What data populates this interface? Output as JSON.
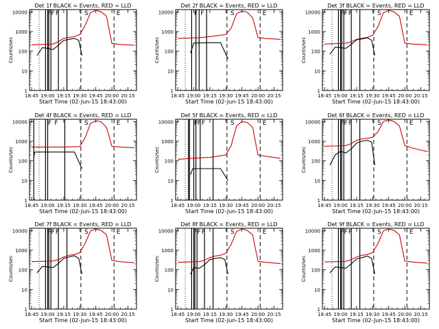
{
  "chart_data": [
    {
      "type": "line",
      "title": "Det 1f BLACK = Events, RED = LLD",
      "xlabel": "Start Time (02-Jun-15 18:43:00)",
      "ylabel": "Counts/sec",
      "xticks": [
        "18:45",
        "19:00",
        "19:15",
        "19:30",
        "19:45",
        "20:00",
        "20:15"
      ],
      "xlim_min": [
        -2,
        98
      ],
      "yscale": "log",
      "ylim": [
        1,
        13000
      ],
      "yticks": [
        "1",
        "10",
        "100",
        "1000",
        "10000"
      ],
      "marker_labels": [
        "F",
        "F",
        "F",
        "S",
        "E"
      ],
      "series": [
        {
          "color": "#cc0000",
          "x": [
            0,
            10,
            20,
            25,
            30,
            35,
            40,
            45,
            50,
            55,
            60,
            65,
            70,
            75,
            82,
            90,
            96
          ],
          "y": [
            210,
            220,
            230,
            300,
            450,
            500,
            550,
            700,
            2000,
            9000,
            12000,
            10000,
            6000,
            250,
            220,
            210,
            200
          ]
        },
        {
          "color": "#000000",
          "x": [
            5,
            10,
            15,
            20,
            25,
            30,
            35,
            40,
            44,
            47
          ],
          "y": [
            60,
            150,
            140,
            120,
            200,
            350,
            400,
            450,
            350,
            60
          ]
        }
      ]
    },
    {
      "type": "line",
      "title": "Det 2f BLACK = Events, RED = LLD",
      "xlabel": "Start Time (02-Jun-15 18:43:00)",
      "ylabel": "Counts/sec",
      "xticks": [
        "18:45",
        "19:00",
        "19:15",
        "19:30",
        "19:45",
        "20:00",
        "20:15"
      ],
      "xlim_min": [
        -2,
        98
      ],
      "yscale": "log",
      "ylim": [
        1,
        13000
      ],
      "yticks": [
        "1",
        "10",
        "100",
        "1000",
        "10000"
      ],
      "marker_labels": [
        "F",
        "F",
        "S",
        "E"
      ],
      "series": [
        {
          "color": "#cc0000",
          "x": [
            0,
            10,
            20,
            30,
            40,
            45,
            50,
            55,
            60,
            65,
            70,
            75,
            82,
            90,
            96
          ],
          "y": [
            450,
            460,
            480,
            550,
            650,
            700,
            1500,
            8000,
            11000,
            9500,
            5000,
            500,
            440,
            420,
            400
          ]
        },
        {
          "color": "#000000",
          "x": [
            12,
            15,
            20,
            30,
            40,
            47
          ],
          "y": [
            80,
            260,
            260,
            270,
            270,
            40
          ]
        }
      ]
    },
    {
      "type": "line",
      "title": "Det 3f BLACK = Events, RED = LLD",
      "xlabel": "Start Time (02-Jun-15 18:43:00)",
      "ylabel": "Counts/sec",
      "xticks": [
        "18:45",
        "19:00",
        "19:15",
        "19:30",
        "19:45",
        "20:00",
        "20:15"
      ],
      "xlim_min": [
        -2,
        98
      ],
      "yscale": "log",
      "ylim": [
        1,
        13000
      ],
      "yticks": [
        "1",
        "10",
        "100",
        "1000",
        "10000"
      ],
      "marker_labels": [
        "F",
        "F",
        "F",
        "S",
        "E"
      ],
      "series": [
        {
          "color": "#cc0000",
          "x": [
            0,
            10,
            20,
            25,
            30,
            35,
            40,
            45,
            50,
            55,
            60,
            65,
            70,
            75,
            82,
            90,
            96
          ],
          "y": [
            230,
            240,
            250,
            300,
            400,
            450,
            500,
            650,
            1800,
            9000,
            12000,
            10000,
            6000,
            260,
            230,
            220,
            210
          ]
        },
        {
          "color": "#000000",
          "x": [
            5,
            10,
            15,
            20,
            25,
            30,
            35,
            40,
            44,
            47
          ],
          "y": [
            70,
            160,
            150,
            140,
            220,
            380,
            420,
            480,
            360,
            60
          ]
        }
      ]
    },
    {
      "type": "line",
      "title": "Det 4f BLACK = Events, RED = LLD",
      "xlabel": "Start Time (02-Jun-15 18:43:00)",
      "ylabel": "Counts/sec",
      "xticks": [
        "18:45",
        "19:00",
        "19:15",
        "19:30",
        "19:45",
        "20:00",
        "20:15"
      ],
      "xlim_min": [
        -2,
        98
      ],
      "yscale": "log",
      "ylim": [
        1,
        13000
      ],
      "yticks": [
        "1",
        "10",
        "100",
        "1000",
        "10000"
      ],
      "marker_labels": [
        "F",
        "F",
        "S",
        "E"
      ],
      "series": [
        {
          "color": "#cc0000",
          "x": [
            0,
            10,
            20,
            30,
            40,
            45,
            50,
            55,
            60,
            65,
            70,
            75,
            82,
            90,
            96
          ],
          "y": [
            500,
            500,
            500,
            500,
            520,
            530,
            1500,
            8000,
            11000,
            9500,
            5000,
            550,
            500,
            480,
            460
          ]
        },
        {
          "color": "#000000",
          "x": [
            2,
            3,
            10,
            20,
            30,
            40,
            47
          ],
          "y": [
            150,
            280,
            280,
            280,
            280,
            280,
            40
          ]
        }
      ]
    },
    {
      "type": "line",
      "title": "Det 5f BLACK = Events, RED = LLD",
      "xlabel": "Start Time (02-Jun-15 18:43:00)",
      "ylabel": "Counts/sec",
      "xticks": [
        "18:45",
        "19:00",
        "19:15",
        "19:30",
        "19:45",
        "20:00",
        "20:15"
      ],
      "xlim_min": [
        -2,
        98
      ],
      "yscale": "log",
      "ylim": [
        1,
        13000
      ],
      "yticks": [
        "1",
        "10",
        "100",
        "1000",
        "10000"
      ],
      "marker_labels": [
        "F",
        "F",
        "F",
        "S",
        "E"
      ],
      "series": [
        {
          "color": "#cc0000",
          "x": [
            0,
            10,
            20,
            30,
            40,
            45,
            50,
            55,
            60,
            65,
            70,
            75,
            82,
            90,
            96
          ],
          "y": [
            120,
            130,
            140,
            150,
            180,
            200,
            600,
            6000,
            10000,
            9000,
            5000,
            200,
            170,
            150,
            130
          ]
        },
        {
          "color": "#000000",
          "x": [
            12,
            14,
            20,
            30,
            40,
            47
          ],
          "y": [
            20,
            40,
            40,
            40,
            40,
            10
          ]
        }
      ]
    },
    {
      "type": "line",
      "title": "Det 6f BLACK = Events, RED = LLD",
      "xlabel": "Start Time (02-Jun-15 18:43:00)",
      "ylabel": "Counts/sec",
      "xticks": [
        "18:45",
        "19:00",
        "19:15",
        "19:30",
        "19:45",
        "20:00",
        "20:15"
      ],
      "xlim_min": [
        -2,
        98
      ],
      "yscale": "log",
      "ylim": [
        1,
        13000
      ],
      "yticks": [
        "1",
        "10",
        "100",
        "1000",
        "10000"
      ],
      "marker_labels": [
        "F",
        "F",
        "F",
        "S",
        "E"
      ],
      "series": [
        {
          "color": "#cc0000",
          "x": [
            0,
            10,
            20,
            25,
            30,
            35,
            40,
            45,
            50,
            55,
            60,
            65,
            70,
            75,
            82,
            90,
            96
          ],
          "y": [
            550,
            570,
            600,
            750,
            1100,
            1300,
            1400,
            1600,
            3000,
            10000,
            12000,
            10000,
            6000,
            600,
            450,
            350,
            300
          ]
        },
        {
          "color": "#000000",
          "x": [
            5,
            10,
            15,
            20,
            25,
            30,
            35,
            40,
            44,
            47
          ],
          "y": [
            60,
            200,
            300,
            250,
            400,
            800,
            1000,
            1100,
            900,
            60
          ]
        }
      ]
    },
    {
      "type": "line",
      "title": "Det 7f BLACK = Events, RED = LLD",
      "xlabel": "Start Time (02-Jun-15 18:43:00)",
      "ylabel": "Counts/sec",
      "xticks": [
        "18:45",
        "19:00",
        "19:15",
        "19:30",
        "19:45",
        "20:00",
        "20:15"
      ],
      "xlim_min": [
        -2,
        98
      ],
      "yscale": "log",
      "ylim": [
        1,
        13000
      ],
      "yticks": [
        "1",
        "10",
        "100",
        "1000",
        "10000"
      ],
      "marker_labels": [
        "F",
        "F",
        "F",
        "S",
        "E"
      ],
      "series": [
        {
          "color": "#cc0000",
          "x": [
            0,
            10,
            20,
            25,
            30,
            35,
            40,
            45,
            50,
            55,
            60,
            65,
            70,
            75,
            82,
            90,
            96
          ],
          "y": [
            260,
            270,
            280,
            330,
            450,
            550,
            600,
            750,
            2200,
            9500,
            12000,
            10000,
            6000,
            300,
            260,
            240,
            230
          ]
        },
        {
          "color": "#000000",
          "x": [
            5,
            10,
            15,
            20,
            25,
            30,
            35,
            40,
            44,
            47
          ],
          "y": [
            70,
            150,
            140,
            130,
            210,
            380,
            450,
            520,
            380,
            60
          ]
        }
      ]
    },
    {
      "type": "line",
      "title": "Det 8f BLACK = Events, RED = LLD",
      "xlabel": "Start Time (02-Jun-15 18:43:00)",
      "ylabel": "Counts/sec",
      "xticks": [
        "18:45",
        "19:00",
        "19:15",
        "19:30",
        "19:45",
        "20:00",
        "20:15"
      ],
      "xlim_min": [
        -2,
        98
      ],
      "yscale": "log",
      "ylim": [
        1,
        13000
      ],
      "yticks": [
        "1",
        "10",
        "100",
        "1000",
        "10000"
      ],
      "marker_labels": [
        "F",
        "F",
        "F",
        "S",
        "E"
      ],
      "series": [
        {
          "color": "#cc0000",
          "x": [
            0,
            10,
            20,
            25,
            30,
            35,
            40,
            45,
            50,
            55,
            60,
            65,
            70,
            75,
            82,
            90,
            96
          ],
          "y": [
            240,
            250,
            260,
            300,
            420,
            500,
            550,
            700,
            2000,
            9000,
            12000,
            10000,
            6000,
            270,
            240,
            220,
            210
          ]
        },
        {
          "color": "#000000",
          "x": [
            12,
            15,
            20,
            25,
            30,
            35,
            40,
            44,
            47
          ],
          "y": [
            60,
            130,
            120,
            180,
            330,
            380,
            420,
            330,
            60
          ]
        }
      ]
    },
    {
      "type": "line",
      "title": "Det 9f BLACK = Events, RED = LLD",
      "xlabel": "Start Time (02-Jun-15 18:43:00)",
      "ylabel": "Counts/sec",
      "xticks": [
        "18:45",
        "19:00",
        "19:15",
        "19:30",
        "19:45",
        "20:00",
        "20:15"
      ],
      "xlim_min": [
        -2,
        98
      ],
      "yscale": "log",
      "ylim": [
        1,
        13000
      ],
      "yticks": [
        "1",
        "10",
        "100",
        "1000",
        "10000"
      ],
      "marker_labels": [
        "F",
        "F",
        "F",
        "S",
        "E"
      ],
      "series": [
        {
          "color": "#cc0000",
          "x": [
            0,
            10,
            20,
            25,
            30,
            35,
            40,
            45,
            50,
            55,
            60,
            65,
            70,
            75,
            82,
            90,
            96
          ],
          "y": [
            250,
            260,
            270,
            330,
            450,
            550,
            600,
            750,
            2200,
            9500,
            12000,
            10000,
            6000,
            280,
            250,
            230,
            220
          ]
        },
        {
          "color": "#000000",
          "x": [
            5,
            10,
            15,
            20,
            25,
            30,
            35,
            40,
            44,
            47
          ],
          "y": [
            70,
            140,
            130,
            120,
            200,
            360,
            420,
            500,
            380,
            60
          ]
        }
      ]
    }
  ]
}
